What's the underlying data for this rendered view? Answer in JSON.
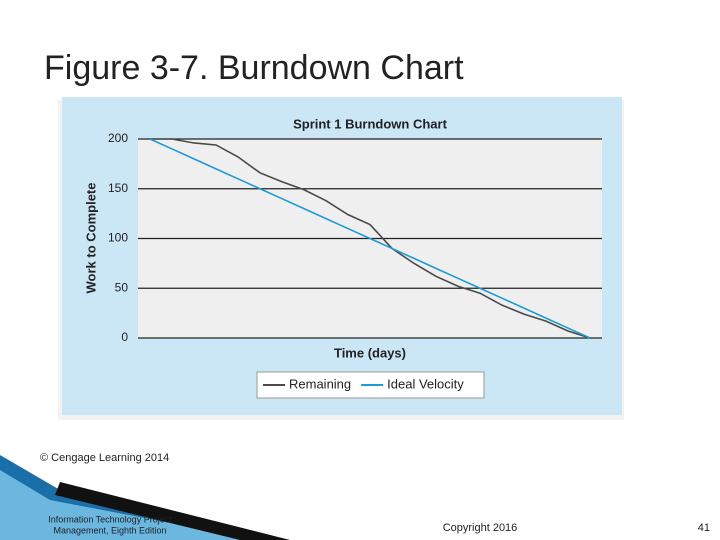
{
  "slide_title": "Figure 3-7. Burndown Chart",
  "credit": "© Cengage Learning 2014",
  "footer": {
    "source": [
      "Information Technology Project",
      "Management, Eighth Edition"
    ],
    "copyright": "Copyright 2016",
    "page": "41"
  },
  "chart_data": {
    "type": "line",
    "title": "Sprint 1 Burndown Chart",
    "x_label": "Time (days)",
    "y_label": "Work to Complete",
    "categories": [
      null,
      null,
      null,
      null,
      null,
      null,
      null,
      null,
      null,
      null,
      null,
      null,
      null,
      null,
      null,
      null,
      null,
      null,
      null,
      null,
      null
    ],
    "series": [
      {
        "name": "Remaining",
        "color": "#4a4a4a",
        "values": [
          200,
          200,
          196,
          194,
          182,
          166,
          157,
          149,
          138,
          124,
          114,
          90,
          75,
          62,
          52,
          45,
          33,
          24,
          17,
          7,
          0
        ]
      },
      {
        "name": "Ideal Velocity",
        "color": "#1e9ad6",
        "values": [
          200,
          190,
          180,
          170,
          160,
          150,
          140,
          130,
          120,
          110,
          100,
          90,
          80,
          70,
          60,
          50,
          40,
          30,
          20,
          10,
          0
        ]
      }
    ],
    "ylim": [
      0,
      200
    ],
    "yticks": [
      0,
      50,
      100,
      150,
      200
    ],
    "grid": true,
    "legend": "bottom"
  }
}
